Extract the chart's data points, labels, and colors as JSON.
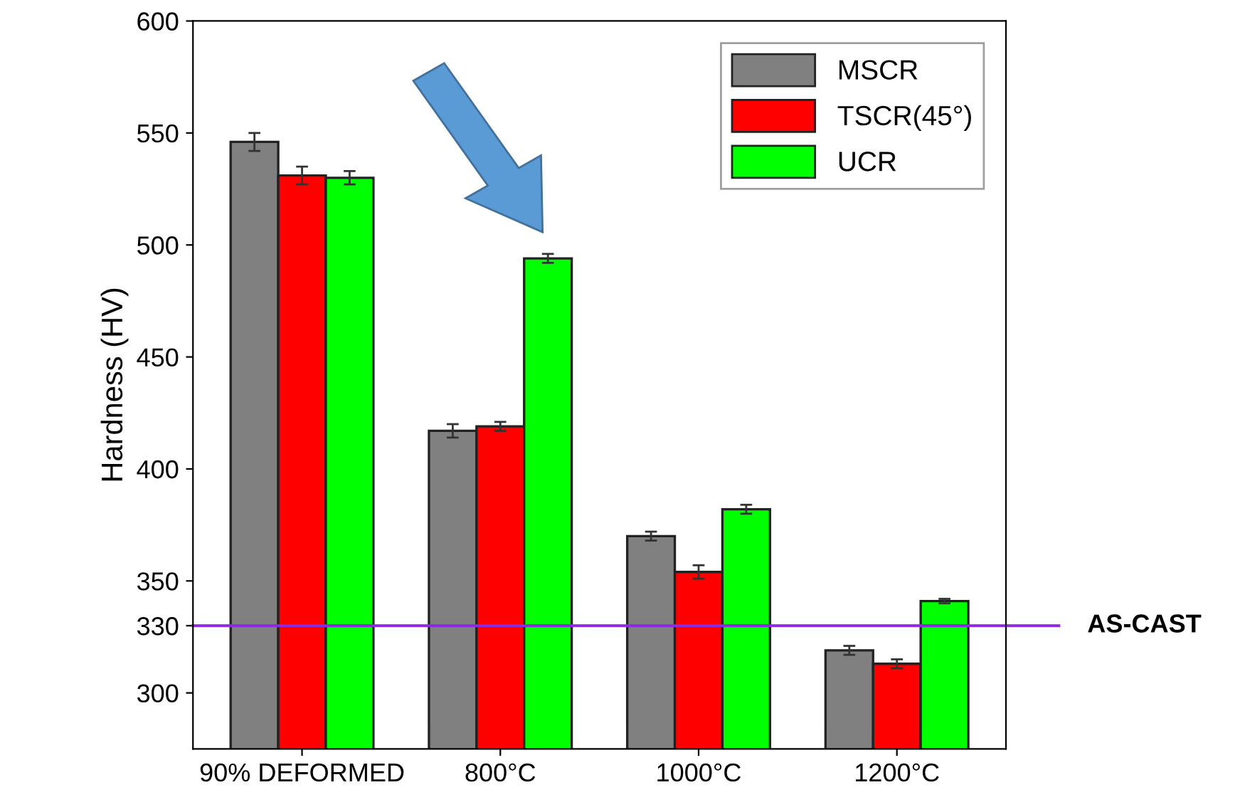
{
  "chart_data": {
    "type": "bar",
    "ylabel": "Hardness (HV)",
    "categories": [
      "90% DEFORMED",
      "800°C",
      "1000°C",
      "1200°C"
    ],
    "series": [
      {
        "name": "MSCR",
        "color": "#808080",
        "values": [
          546,
          417,
          370,
          319
        ],
        "errors": [
          4,
          3,
          2,
          2
        ]
      },
      {
        "name": "TSCR(45°)",
        "color": "#ff0000",
        "values": [
          531,
          419,
          354,
          313
        ],
        "errors": [
          4,
          2,
          3,
          2
        ]
      },
      {
        "name": "UCR",
        "color": "#00ff00",
        "values": [
          530,
          494,
          382,
          341
        ],
        "errors": [
          3,
          2,
          2,
          1
        ]
      }
    ],
    "ylim": [
      275,
      600
    ],
    "yticks": [
      300,
      330,
      350,
      400,
      450,
      500,
      550,
      600
    ],
    "ref_lines": [
      {
        "axis": "y",
        "value": 330,
        "label": "AS-CAST",
        "color": "#8a2be2"
      }
    ],
    "grid": false,
    "legend": "top right"
  }
}
